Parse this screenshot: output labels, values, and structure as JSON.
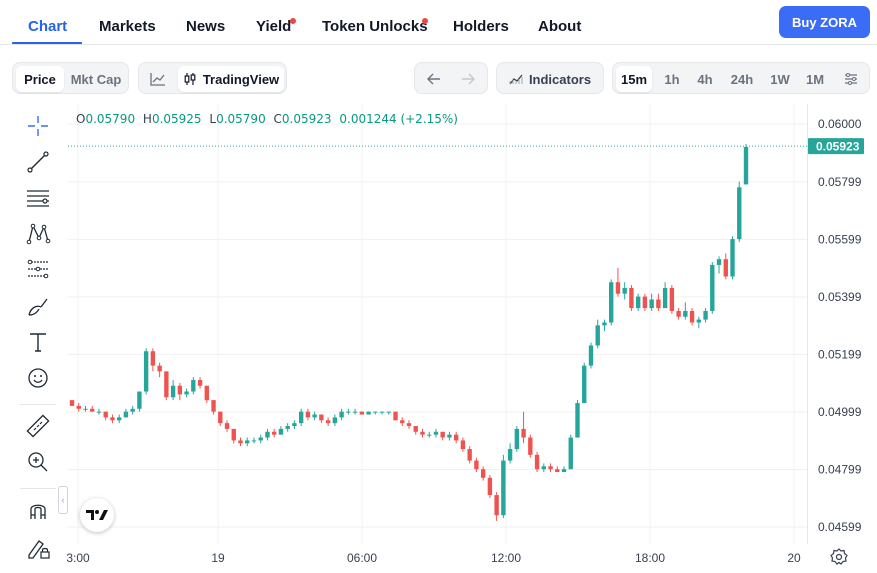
{
  "nav": {
    "tabs": [
      "Chart",
      "Markets",
      "News",
      "Yield",
      "Token Unlocks",
      "Holders",
      "About"
    ],
    "active_tab": "Chart",
    "buy_label": "Buy ZORA"
  },
  "toolbar": {
    "price_label": "Price",
    "mktcap_label": "Mkt Cap",
    "tradingview_label": "TradingView",
    "indicators_label": "Indicators",
    "intervals": [
      "15m",
      "1h",
      "4h",
      "24h",
      "1W",
      "1M"
    ],
    "active_interval": "15m"
  },
  "tools": [
    "crosshair-icon",
    "trendline-icon",
    "horizontal-lines-icon",
    "pattern-icon",
    "fib-icon",
    "brush-icon",
    "text-icon",
    "emoji-icon",
    "ruler-icon",
    "zoom-icon",
    "magnet-icon",
    "lock-pencil-icon"
  ],
  "ohlc": {
    "o_label": "O",
    "o": "0.05790",
    "h_label": "H",
    "h": "0.05925",
    "l_label": "L",
    "l": "0.05790",
    "c_label": "C",
    "c": "0.05923",
    "change": "0.001244 (+2.15%)"
  },
  "last_price_badge": "0.05923",
  "colors": {
    "up": "#26a69a",
    "down": "#ef5350",
    "accent": "#2563eb",
    "buy": "#3b6cf5"
  },
  "chart_data": {
    "type": "candlestick",
    "y_ticks": [
      "0.06000",
      "0.05799",
      "0.05599",
      "0.05399",
      "0.05199",
      "0.04999",
      "0.04799",
      "0.04599"
    ],
    "x_ticks": [
      "3:00",
      "19",
      "06:00",
      "12:00",
      "18:00",
      "20"
    ],
    "ylim": [
      0.0455,
      0.0603
    ],
    "last_price": 0.05923,
    "candles": [
      [
        0.0504,
        0.0504,
        0.0502,
        0.0502
      ],
      [
        0.0502,
        0.0503,
        0.05,
        0.0501
      ],
      [
        0.0501,
        0.0502,
        0.05,
        0.0501
      ],
      [
        0.0501,
        0.0502,
        0.05,
        0.05
      ],
      [
        0.05,
        0.0501,
        0.0499,
        0.05
      ],
      [
        0.05,
        0.05,
        0.0497,
        0.0498
      ],
      [
        0.0498,
        0.0499,
        0.0496,
        0.0497
      ],
      [
        0.0497,
        0.0499,
        0.0496,
        0.0498
      ],
      [
        0.0498,
        0.0501,
        0.0498,
        0.05
      ],
      [
        0.05,
        0.0502,
        0.0499,
        0.0501
      ],
      [
        0.0501,
        0.0507,
        0.05,
        0.0507
      ],
      [
        0.0507,
        0.0522,
        0.0506,
        0.0521
      ],
      [
        0.0521,
        0.0522,
        0.0514,
        0.0516
      ],
      [
        0.0516,
        0.0517,
        0.0512,
        0.0514
      ],
      [
        0.0514,
        0.0514,
        0.0504,
        0.0505
      ],
      [
        0.0505,
        0.0511,
        0.0504,
        0.0509
      ],
      [
        0.0509,
        0.051,
        0.0504,
        0.0506
      ],
      [
        0.0506,
        0.0508,
        0.0505,
        0.0507
      ],
      [
        0.0507,
        0.0512,
        0.0506,
        0.0511
      ],
      [
        0.0511,
        0.0512,
        0.0508,
        0.0509
      ],
      [
        0.0509,
        0.0509,
        0.0503,
        0.0504
      ],
      [
        0.0504,
        0.0504,
        0.0499,
        0.05
      ],
      [
        0.05,
        0.05,
        0.0495,
        0.0496
      ],
      [
        0.0496,
        0.0497,
        0.0493,
        0.0494
      ],
      [
        0.0494,
        0.0494,
        0.0489,
        0.049
      ],
      [
        0.049,
        0.0491,
        0.0488,
        0.0489
      ],
      [
        0.0489,
        0.0491,
        0.0488,
        0.049
      ],
      [
        0.049,
        0.0491,
        0.0489,
        0.049
      ],
      [
        0.049,
        0.0492,
        0.0489,
        0.0491
      ],
      [
        0.0491,
        0.0494,
        0.049,
        0.0493
      ],
      [
        0.0493,
        0.0494,
        0.0491,
        0.0492
      ],
      [
        0.0492,
        0.0495,
        0.0492,
        0.0494
      ],
      [
        0.0494,
        0.0496,
        0.0493,
        0.0495
      ],
      [
        0.0495,
        0.0497,
        0.0494,
        0.0496
      ],
      [
        0.0496,
        0.0501,
        0.0495,
        0.05
      ],
      [
        0.05,
        0.0501,
        0.0497,
        0.0498
      ],
      [
        0.0498,
        0.05,
        0.0497,
        0.0499
      ],
      [
        0.0499,
        0.0499,
        0.0496,
        0.0497
      ],
      [
        0.0497,
        0.0498,
        0.0495,
        0.0496
      ],
      [
        0.0496,
        0.0499,
        0.0495,
        0.0498
      ],
      [
        0.0498,
        0.0501,
        0.0497,
        0.05
      ],
      [
        0.05,
        0.0501,
        0.0499,
        0.05
      ],
      [
        0.05,
        0.0501,
        0.0499,
        0.05
      ],
      [
        0.05,
        0.05,
        0.0499,
        0.0499
      ],
      [
        0.0499,
        0.05,
        0.0499,
        0.05
      ],
      [
        0.05,
        0.05,
        0.0499,
        0.05
      ],
      [
        0.05,
        0.05,
        0.0499,
        0.05
      ],
      [
        0.05,
        0.05,
        0.0499,
        0.05
      ],
      [
        0.05,
        0.05,
        0.0497,
        0.0497
      ],
      [
        0.0497,
        0.0498,
        0.0495,
        0.0496
      ],
      [
        0.0496,
        0.0497,
        0.0494,
        0.0495
      ],
      [
        0.0495,
        0.0495,
        0.0492,
        0.0493
      ],
      [
        0.0493,
        0.0494,
        0.0491,
        0.0492
      ],
      [
        0.0492,
        0.0493,
        0.0491,
        0.0492
      ],
      [
        0.0492,
        0.0494,
        0.0491,
        0.0493
      ],
      [
        0.0493,
        0.0493,
        0.049,
        0.0491
      ],
      [
        0.0491,
        0.0493,
        0.049,
        0.0492
      ],
      [
        0.0492,
        0.0493,
        0.0489,
        0.049
      ],
      [
        0.049,
        0.0491,
        0.0486,
        0.0487
      ],
      [
        0.0487,
        0.0488,
        0.0482,
        0.0483
      ],
      [
        0.0483,
        0.0484,
        0.0479,
        0.048
      ],
      [
        0.048,
        0.0481,
        0.0476,
        0.0477
      ],
      [
        0.0477,
        0.0478,
        0.047,
        0.0471
      ],
      [
        0.0471,
        0.0472,
        0.0462,
        0.0464
      ],
      [
        0.0464,
        0.0485,
        0.0463,
        0.0483
      ],
      [
        0.0483,
        0.0489,
        0.0482,
        0.0487
      ],
      [
        0.0487,
        0.0495,
        0.0486,
        0.0494
      ],
      [
        0.0494,
        0.05,
        0.0489,
        0.0491
      ],
      [
        0.0491,
        0.0492,
        0.0484,
        0.0485
      ],
      [
        0.0485,
        0.0486,
        0.0479,
        0.048
      ],
      [
        0.048,
        0.0482,
        0.0479,
        0.0481
      ],
      [
        0.0481,
        0.0482,
        0.0479,
        0.048
      ],
      [
        0.048,
        0.0481,
        0.0479,
        0.0479
      ],
      [
        0.0479,
        0.0481,
        0.0479,
        0.048
      ],
      [
        0.048,
        0.0492,
        0.048,
        0.0491
      ],
      [
        0.0491,
        0.0504,
        0.0491,
        0.0503
      ],
      [
        0.0503,
        0.0517,
        0.0503,
        0.0516
      ],
      [
        0.0516,
        0.0524,
        0.0515,
        0.0523
      ],
      [
        0.0523,
        0.0532,
        0.0522,
        0.053
      ],
      [
        0.053,
        0.0532,
        0.0528,
        0.0531
      ],
      [
        0.0531,
        0.0546,
        0.053,
        0.0545
      ],
      [
        0.0545,
        0.055,
        0.054,
        0.0541
      ],
      [
        0.0541,
        0.0545,
        0.0539,
        0.0543
      ],
      [
        0.0543,
        0.0544,
        0.0535,
        0.0536
      ],
      [
        0.0536,
        0.0541,
        0.0535,
        0.054
      ],
      [
        0.054,
        0.0541,
        0.0535,
        0.0536
      ],
      [
        0.0536,
        0.0541,
        0.0535,
        0.0539
      ],
      [
        0.0539,
        0.0541,
        0.0535,
        0.0536
      ],
      [
        0.0536,
        0.0545,
        0.0536,
        0.0543
      ],
      [
        0.0543,
        0.0544,
        0.0534,
        0.0535
      ],
      [
        0.0535,
        0.0536,
        0.0532,
        0.0533
      ],
      [
        0.0533,
        0.0538,
        0.0532,
        0.0535
      ],
      [
        0.0535,
        0.0536,
        0.053,
        0.0531
      ],
      [
        0.0531,
        0.0533,
        0.0529,
        0.0532
      ],
      [
        0.0532,
        0.0536,
        0.0531,
        0.0535
      ],
      [
        0.0535,
        0.0552,
        0.0534,
        0.0551
      ],
      [
        0.0551,
        0.0554,
        0.0548,
        0.0553
      ],
      [
        0.0553,
        0.0555,
        0.0546,
        0.0547
      ],
      [
        0.0547,
        0.0561,
        0.0546,
        0.056
      ],
      [
        0.056,
        0.058,
        0.0559,
        0.0578
      ],
      [
        0.0579,
        0.0593,
        0.0579,
        0.0592
      ]
    ]
  }
}
